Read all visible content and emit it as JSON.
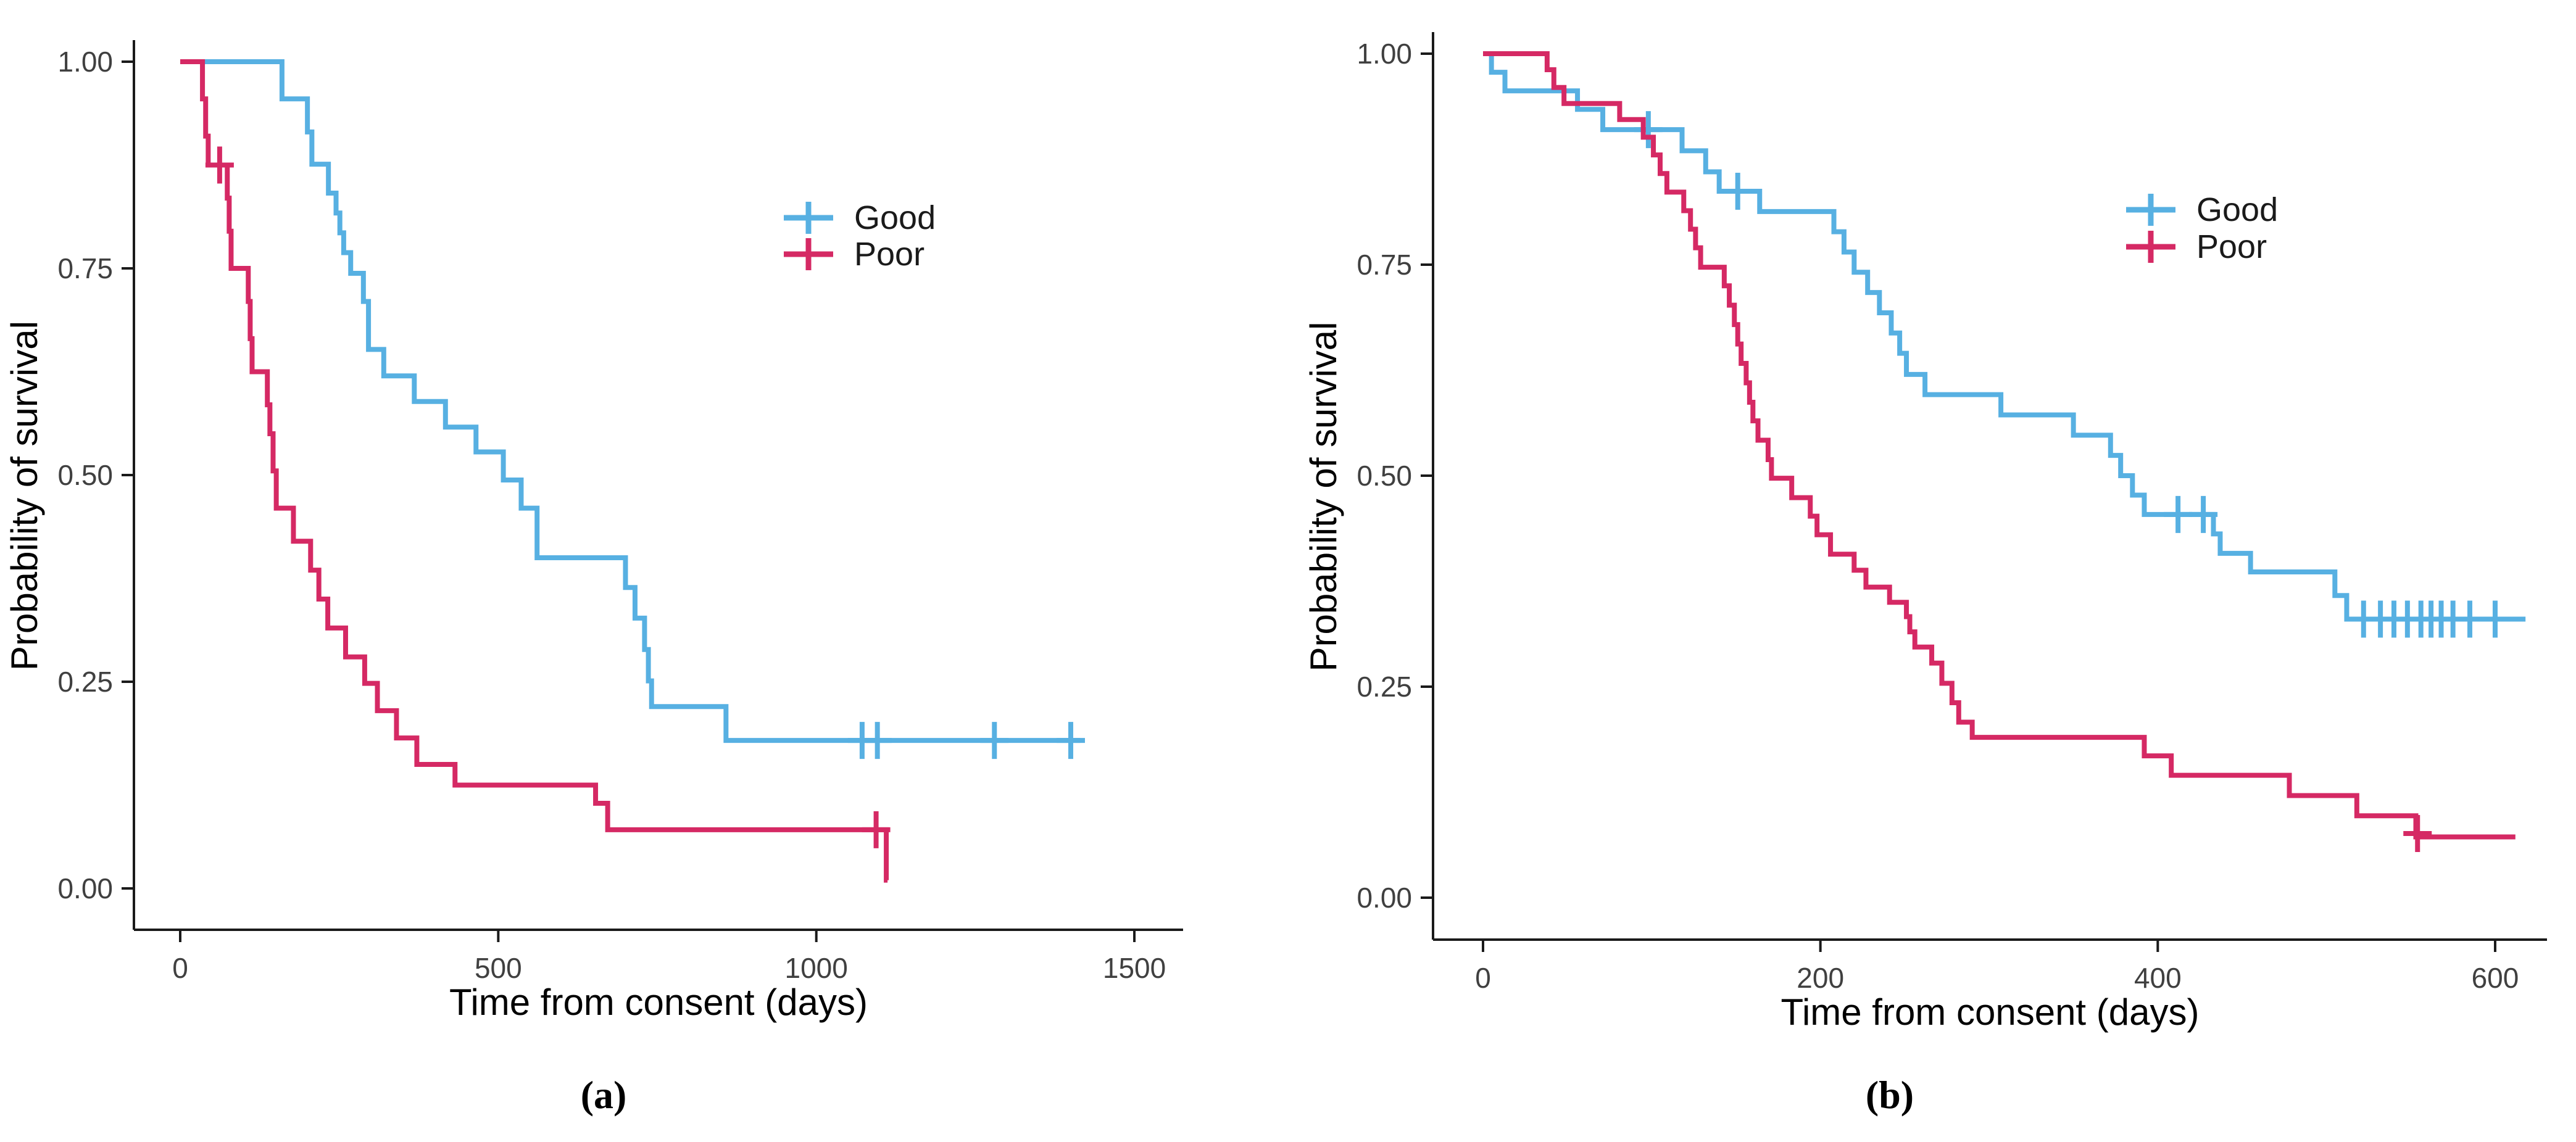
{
  "figure": {
    "caption_a": "(a)",
    "caption_b": "(b)",
    "background": "#ffffff",
    "axis_color": "#1a1a1a",
    "tick_label_color": "#404040",
    "title_color": "#000000"
  },
  "chart_data": [
    {
      "id": "a",
      "type": "line",
      "subtype": "kaplan-meier-step",
      "caption": "(a)",
      "xlabel": "Time from consent (days)",
      "ylabel": "Probability of survival",
      "xticks": [
        0,
        500,
        1000,
        1500
      ],
      "xtick_labels": [
        "0",
        "500",
        "1000",
        "1500"
      ],
      "ytick_labels": [
        "0.00",
        "0.25",
        "0.50",
        "0.75",
        "1.00"
      ],
      "yticks": [
        0,
        0.25,
        0.5,
        0.75,
        1.0
      ],
      "xlim": [
        0,
        1560
      ],
      "ylim": [
        0,
        1
      ],
      "grid": false,
      "legend": {
        "position": "inside-top-right",
        "entries": [
          {
            "label": "Good",
            "color": "#57B0E2"
          },
          {
            "label": "Poor",
            "color": "#D52964"
          }
        ]
      },
      "series": [
        {
          "name": "Good",
          "color": "#57B0E2",
          "start": [
            0,
            1.0
          ],
          "end_day": 1415,
          "steps": [
            [
              160,
              0.955
            ],
            [
              200,
              0.915
            ],
            [
              207,
              0.876
            ],
            [
              233,
              0.841
            ],
            [
              245,
              0.817
            ],
            [
              251,
              0.793
            ],
            [
              257,
              0.769
            ],
            [
              268,
              0.744
            ],
            [
              288,
              0.71
            ],
            [
              296,
              0.652
            ],
            [
              320,
              0.62
            ],
            [
              368,
              0.589
            ],
            [
              417,
              0.558
            ],
            [
              465,
              0.528
            ],
            [
              508,
              0.494
            ],
            [
              536,
              0.46
            ],
            [
              561,
              0.4
            ],
            [
              700,
              0.364
            ],
            [
              715,
              0.327
            ],
            [
              730,
              0.289
            ],
            [
              736,
              0.251
            ],
            [
              741,
              0.22
            ],
            [
              858,
              0.179
            ]
          ],
          "censors": [
            [
              1072,
              0.179
            ],
            [
              1096,
              0.179
            ],
            [
              1280,
              0.179
            ],
            [
              1400,
              0.179
            ]
          ]
        },
        {
          "name": "Poor",
          "color": "#D52964",
          "start": [
            0,
            1.0
          ],
          "end_day": 1112,
          "steps": [
            [
              35,
              0.955
            ],
            [
              40,
              0.91
            ],
            [
              44,
              0.875
            ],
            [
              74,
              0.835
            ],
            [
              77,
              0.795
            ],
            [
              80,
              0.75
            ],
            [
              107,
              0.71
            ],
            [
              110,
              0.665
            ],
            [
              113,
              0.625
            ],
            [
              137,
              0.585
            ],
            [
              141,
              0.55
            ],
            [
              146,
              0.505
            ],
            [
              151,
              0.46
            ],
            [
              178,
              0.42
            ],
            [
              205,
              0.385
            ],
            [
              218,
              0.35
            ],
            [
              232,
              0.315
            ],
            [
              260,
              0.28
            ],
            [
              290,
              0.248
            ],
            [
              310,
              0.215
            ],
            [
              340,
              0.182
            ],
            [
              372,
              0.15
            ],
            [
              432,
              0.125
            ],
            [
              653,
              0.103
            ],
            [
              672,
              0.071
            ],
            [
              1110,
              0.01
            ]
          ],
          "censors": [
            [
              62,
              0.875
            ],
            [
              1094,
              0.071
            ]
          ]
        }
      ]
    },
    {
      "id": "b",
      "type": "line",
      "subtype": "kaplan-meier-step",
      "caption": "(b)",
      "xlabel": "Time from consent (days)",
      "ylabel": "Probability of survival",
      "xticks": [
        0,
        200,
        400,
        600
      ],
      "xtick_labels": [
        "0",
        "200",
        "400",
        "600"
      ],
      "ytick_labels": [
        "0.00",
        "0.25",
        "0.50",
        "0.75",
        "1.00"
      ],
      "yticks": [
        0,
        0.25,
        0.5,
        0.75,
        1.0
      ],
      "xlim": [
        0,
        630
      ],
      "ylim": [
        0,
        1
      ],
      "grid": false,
      "legend": {
        "position": "inside-top-right",
        "entries": [
          {
            "label": "Good",
            "color": "#57B0E2"
          },
          {
            "label": "Poor",
            "color": "#D52964"
          }
        ]
      },
      "series": [
        {
          "name": "Good",
          "color": "#57B0E2",
          "start": [
            0,
            1.0
          ],
          "end_day": 618,
          "steps": [
            [
              5,
              0.978
            ],
            [
              13,
              0.956
            ],
            [
              56,
              0.934
            ],
            [
              71,
              0.91
            ],
            [
              118,
              0.885
            ],
            [
              132,
              0.86
            ],
            [
              140,
              0.837
            ],
            [
              164,
              0.813
            ],
            [
              208,
              0.789
            ],
            [
              214,
              0.765
            ],
            [
              220,
              0.741
            ],
            [
              228,
              0.717
            ],
            [
              235,
              0.693
            ],
            [
              242,
              0.669
            ],
            [
              247,
              0.645
            ],
            [
              251,
              0.62
            ],
            [
              262,
              0.596
            ],
            [
              307,
              0.572
            ],
            [
              350,
              0.548
            ],
            [
              372,
              0.524
            ],
            [
              378,
              0.5
            ],
            [
              385,
              0.477
            ],
            [
              392,
              0.454
            ],
            [
              433,
              0.431
            ],
            [
              437,
              0.408
            ],
            [
              455,
              0.386
            ],
            [
              505,
              0.358
            ],
            [
              512,
              0.33
            ]
          ],
          "censors": [
            [
              98,
              0.91
            ],
            [
              151,
              0.837
            ],
            [
              412,
              0.454
            ],
            [
              427,
              0.454
            ],
            [
              522,
              0.33
            ],
            [
              532,
              0.33
            ],
            [
              540,
              0.33
            ],
            [
              548,
              0.33
            ],
            [
              556,
              0.33
            ],
            [
              562,
              0.33
            ],
            [
              568,
              0.33
            ],
            [
              575,
              0.33
            ],
            [
              585,
              0.33
            ],
            [
              600,
              0.33
            ]
          ]
        },
        {
          "name": "Poor",
          "color": "#D52964",
          "start": [
            0,
            1.0
          ],
          "end_day": 612,
          "steps": [
            [
              38,
              0.981
            ],
            [
              42,
              0.96
            ],
            [
              48,
              0.941
            ],
            [
              81,
              0.922
            ],
            [
              95,
              0.901
            ],
            [
              101,
              0.88
            ],
            [
              105,
              0.858
            ],
            [
              109,
              0.836
            ],
            [
              119,
              0.814
            ],
            [
              123,
              0.792
            ],
            [
              126,
              0.77
            ],
            [
              129,
              0.747
            ],
            [
              143,
              0.725
            ],
            [
              146,
              0.702
            ],
            [
              149,
              0.679
            ],
            [
              151,
              0.656
            ],
            [
              153,
              0.633
            ],
            [
              156,
              0.61
            ],
            [
              158,
              0.587
            ],
            [
              160,
              0.565
            ],
            [
              163,
              0.542
            ],
            [
              169,
              0.519
            ],
            [
              171,
              0.497
            ],
            [
              183,
              0.474
            ],
            [
              194,
              0.452
            ],
            [
              198,
              0.43
            ],
            [
              206,
              0.407
            ],
            [
              220,
              0.388
            ],
            [
              227,
              0.368
            ],
            [
              241,
              0.35
            ],
            [
              251,
              0.333
            ],
            [
              253,
              0.315
            ],
            [
              256,
              0.297
            ],
            [
              266,
              0.278
            ],
            [
              272,
              0.254
            ],
            [
              278,
              0.231
            ],
            [
              282,
              0.208
            ],
            [
              290,
              0.19
            ],
            [
              392,
              0.168
            ],
            [
              408,
              0.145
            ],
            [
              478,
              0.121
            ],
            [
              518,
              0.097
            ],
            [
              553,
              0.072
            ]
          ],
          "censors": [
            [
              554,
              0.076
            ]
          ]
        }
      ]
    }
  ]
}
